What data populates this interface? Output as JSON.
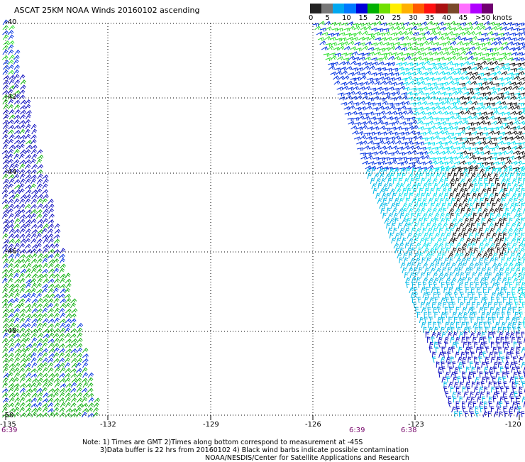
{
  "title": "ASCAT 25KM NOAA Winds 20160102 ascending",
  "legend": {
    "colors": [
      "#222222",
      "#777777",
      "#00a8f0",
      "#0078ff",
      "#0000d8",
      "#00b000",
      "#70e000",
      "#ffee00",
      "#ffb000",
      "#ff5a00",
      "#ff1010",
      "#aa1010",
      "#7a4a2a",
      "#ff70ff",
      "#b000ff",
      "#700070"
    ],
    "labels": [
      "0",
      "5",
      "10",
      "15",
      "20",
      "25",
      "30",
      "35",
      "40",
      "45",
      ">50 knots"
    ]
  },
  "lat_labels": [
    "-40",
    "-42",
    "-44",
    "-46",
    "-48",
    "-50"
  ],
  "lon_labels": [
    "-135",
    "-132",
    "-129",
    "-126",
    "-123",
    "-120"
  ],
  "time_labels": [
    "6:39",
    "6:39",
    "6:38"
  ],
  "note_lines": [
    "Note: 1) Times are GMT 2)Times along bottom correspond to measurement at -45S",
    "3)Data buffer is 22 hrs from 20160102 4) Black wind barbs indicate possible contamination",
    "NOAA/NESDIS/Center for Satellite Applications and Research"
  ]
}
